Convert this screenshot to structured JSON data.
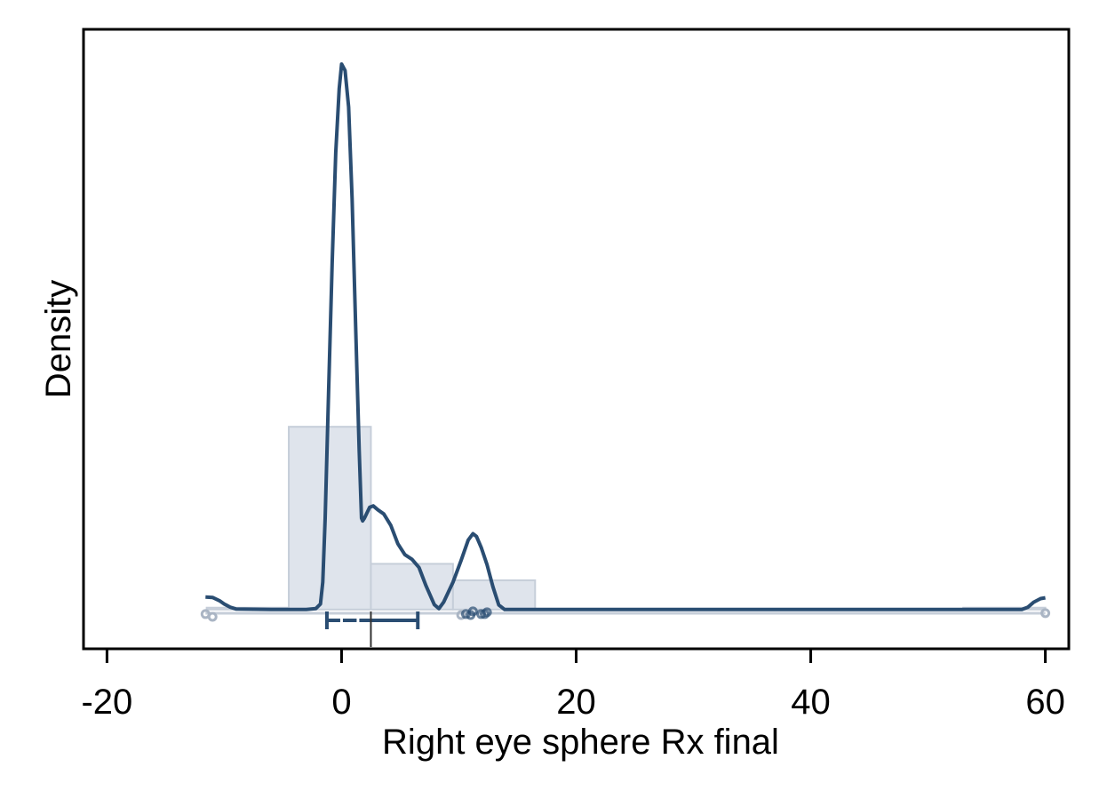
{
  "chart_data": {
    "type": "histogram-density",
    "xlabel": "Right eye sphere Rx final",
    "ylabel": "Density",
    "xlim": [
      -22,
      62
    ],
    "ylim": [
      -0.0215,
      0.3175
    ],
    "x_ticks": [
      -20,
      0,
      20,
      40,
      60
    ],
    "x_tick_labels": [
      "-20",
      "0",
      "20",
      "40",
      "60"
    ],
    "grid": false,
    "legend": "none",
    "histogram": {
      "bins": [
        {
          "start": -11.5,
          "end": -4.5,
          "density": 0.001
        },
        {
          "start": -4.5,
          "end": 2.5,
          "density": 0.1
        },
        {
          "start": 2.5,
          "end": 9.5,
          "density": 0.025
        },
        {
          "start": 9.5,
          "end": 16.5,
          "density": 0.016
        },
        {
          "start": 16.5,
          "end": 53,
          "density": 0.0
        },
        {
          "start": 53,
          "end": 60,
          "density": 0.001
        }
      ],
      "fill_color": "#dfe4ec",
      "stroke_color": "#c6ced9"
    },
    "density_curve": {
      "color": "#2a4d72",
      "points": [
        [
          -11.6,
          0.0068
        ],
        [
          -11.0,
          0.0066
        ],
        [
          -10.4,
          0.0048
        ],
        [
          -10.0,
          0.003
        ],
        [
          -9.5,
          0.0013
        ],
        [
          -9.0,
          0.0003
        ],
        [
          -6.0,
          0.0
        ],
        [
          -3.0,
          0.0
        ],
        [
          -2.2,
          0.0005
        ],
        [
          -1.8,
          0.003
        ],
        [
          -1.6,
          0.015
        ],
        [
          -1.4,
          0.05
        ],
        [
          -1.1,
          0.12
        ],
        [
          -0.8,
          0.19
        ],
        [
          -0.5,
          0.25
        ],
        [
          -0.2,
          0.285
        ],
        [
          0.0,
          0.2985
        ],
        [
          0.3,
          0.295
        ],
        [
          0.6,
          0.275
        ],
        [
          0.9,
          0.225
        ],
        [
          1.2,
          0.155
        ],
        [
          1.5,
          0.087
        ],
        [
          1.7,
          0.05
        ],
        [
          1.8,
          0.0485
        ],
        [
          1.95,
          0.05
        ],
        [
          2.1,
          0.052
        ],
        [
          2.4,
          0.056
        ],
        [
          2.7,
          0.0567
        ],
        [
          3.1,
          0.0545
        ],
        [
          3.6,
          0.0523
        ],
        [
          4.2,
          0.046
        ],
        [
          4.8,
          0.036
        ],
        [
          5.4,
          0.03
        ],
        [
          6.0,
          0.0275
        ],
        [
          6.6,
          0.023
        ],
        [
          7.2,
          0.013
        ],
        [
          7.9,
          0.0027
        ],
        [
          8.3,
          0.0005
        ],
        [
          8.7,
          0.004
        ],
        [
          9.5,
          0.015
        ],
        [
          10.2,
          0.027
        ],
        [
          10.8,
          0.038
        ],
        [
          11.2,
          0.0415
        ],
        [
          11.5,
          0.04
        ],
        [
          11.9,
          0.034
        ],
        [
          12.4,
          0.0245
        ],
        [
          12.9,
          0.0125
        ],
        [
          13.4,
          0.0025
        ],
        [
          13.9,
          0.0
        ],
        [
          20.0,
          0.0
        ],
        [
          40.0,
          0.0
        ],
        [
          58.0,
          0.0
        ],
        [
          58.5,
          0.0012
        ],
        [
          59.0,
          0.004
        ],
        [
          59.6,
          0.006
        ],
        [
          60.0,
          0.0064
        ]
      ]
    },
    "boxplot": {
      "q1": -1.25,
      "median": 2.5,
      "q3": 6.5,
      "whisker_low": -1.25,
      "whisker_high": 6.5,
      "mean": 0.0,
      "color": "#2a4d72"
    },
    "outlier_points": {
      "color_light": "#aab5c4",
      "color_dark": "#2a4d72",
      "light": [
        [
          -11.6,
          -0.0025
        ],
        [
          -11.0,
          -0.004
        ],
        [
          60.0,
          -0.002
        ],
        [
          10.2,
          -0.003
        ]
      ],
      "dark": [
        [
          10.6,
          -0.0025
        ],
        [
          11.0,
          -0.003
        ],
        [
          11.2,
          -0.001
        ],
        [
          11.9,
          -0.0025
        ],
        [
          12.2,
          -0.0025
        ],
        [
          12.4,
          -0.0015
        ]
      ]
    }
  }
}
